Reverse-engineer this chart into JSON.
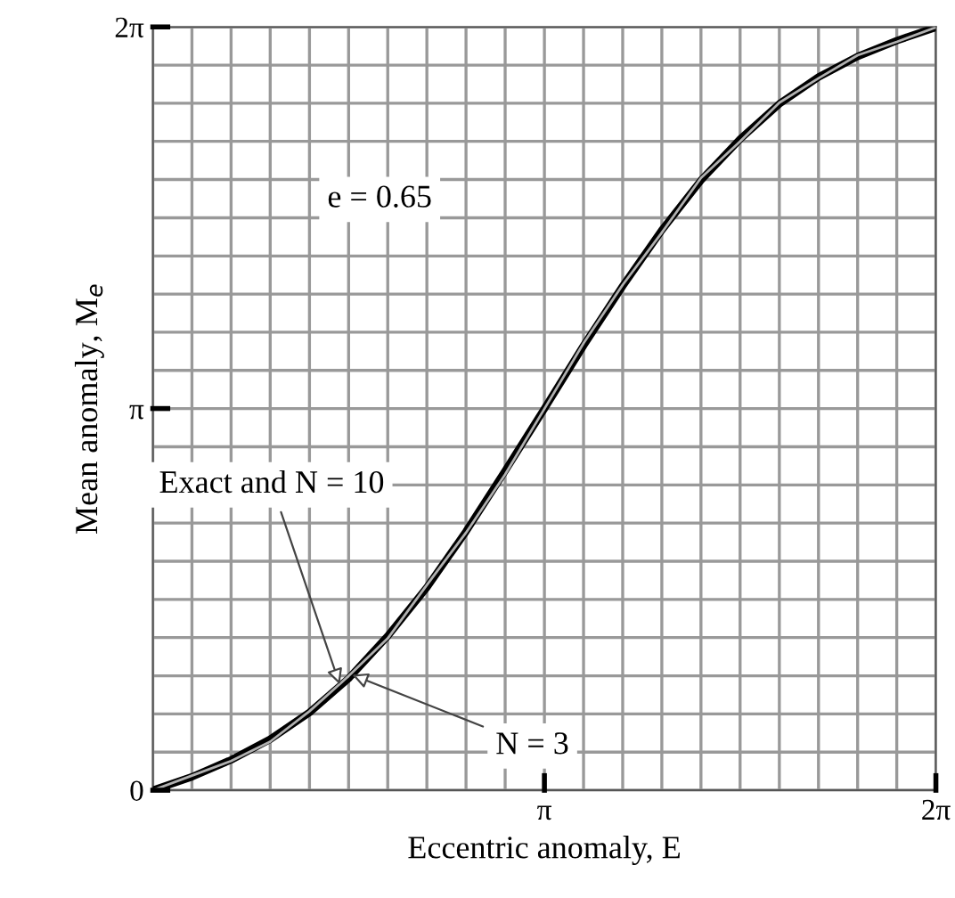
{
  "chart_data": {
    "type": "line",
    "xlabel": "Eccentric anomaly, E",
    "ylabel": "Mean anomaly, M$_{e}$",
    "x": [
      0,
      0.314,
      0.628,
      0.942,
      1.257,
      1.571,
      1.885,
      2.199,
      2.513,
      2.827,
      3.142,
      3.456,
      3.77,
      4.084,
      4.398,
      4.712,
      5.027,
      5.341,
      5.655,
      5.969,
      6.283
    ],
    "series": [
      {
        "color": "#000000",
        "values": [
          0,
          0.11,
          0.25,
          0.42,
          0.64,
          0.92,
          1.27,
          1.67,
          2.13,
          2.63,
          3.14,
          3.66,
          4.15,
          4.61,
          5.02,
          5.36,
          5.65,
          5.87,
          6.04,
          6.17,
          6.28
        ]
      },
      {
        "color": "#b0b0b0",
        "values": [
          0,
          0.12,
          0.24,
          0.4,
          0.65,
          0.94,
          1.25,
          1.69,
          2.12,
          2.6,
          3.14,
          3.68,
          4.16,
          4.59,
          5.04,
          5.34,
          5.66,
          5.86,
          6.05,
          6.16,
          6.28
        ]
      }
    ],
    "annotations": [
      {
        "text": "Exact and N = 10",
        "x": 1.5,
        "y": 0.87
      },
      {
        "text": "N = 3",
        "x": 1.6,
        "y": 0.95
      },
      "e = 0.65"
    ],
    "xlim": [
      0,
      6.283
    ],
    "ylim": [
      0,
      6.283
    ],
    "xticks": [
      {
        "value": 0,
        "label": null
      },
      {
        "value": 0.314,
        "label": null
      },
      {
        "value": 0.628,
        "label": null
      },
      {
        "value": 0.942,
        "label": null
      },
      {
        "value": 1.257,
        "label": null
      },
      {
        "value": 1.571,
        "label": null
      },
      {
        "value": 1.885,
        "label": null
      },
      {
        "value": 2.199,
        "label": null
      },
      {
        "value": 2.513,
        "label": null
      },
      {
        "value": 2.827,
        "label": null
      },
      {
        "value": 3.142,
        "label": "π"
      },
      {
        "value": 3.456,
        "label": null
      },
      {
        "value": 3.77,
        "label": null
      },
      {
        "value": 4.084,
        "label": null
      },
      {
        "value": 4.398,
        "label": null
      },
      {
        "value": 4.712,
        "label": null
      },
      {
        "value": 5.027,
        "label": null
      },
      {
        "value": 5.341,
        "label": null
      },
      {
        "value": 5.655,
        "label": null
      },
      {
        "value": 5.969,
        "label": null
      },
      {
        "value": 6.283,
        "label": "2π"
      }
    ],
    "yticks": [
      {
        "value": 0,
        "label": "0"
      },
      {
        "value": 0.314,
        "label": null
      },
      {
        "value": 0.628,
        "label": null
      },
      {
        "value": 0.942,
        "label": null
      },
      {
        "value": 1.257,
        "label": null
      },
      {
        "value": 1.571,
        "label": null
      },
      {
        "value": 1.885,
        "label": null
      },
      {
        "value": 2.199,
        "label": null
      },
      {
        "value": 2.513,
        "label": null
      },
      {
        "value": 2.827,
        "label": null
      },
      {
        "value": 3.142,
        "label": "π"
      },
      {
        "value": 3.456,
        "label": null
      },
      {
        "value": 3.77,
        "label": null
      },
      {
        "value": 4.084,
        "label": null
      },
      {
        "value": 4.398,
        "label": null
      },
      {
        "value": 4.712,
        "label": null
      },
      {
        "value": 5.027,
        "label": null
      },
      {
        "value": 5.341,
        "label": null
      },
      {
        "value": 5.655,
        "label": null
      },
      {
        "value": 5.969,
        "label": null
      },
      {
        "value": 6.283,
        "label": "2π"
      }
    ],
    "grid": true
  }
}
